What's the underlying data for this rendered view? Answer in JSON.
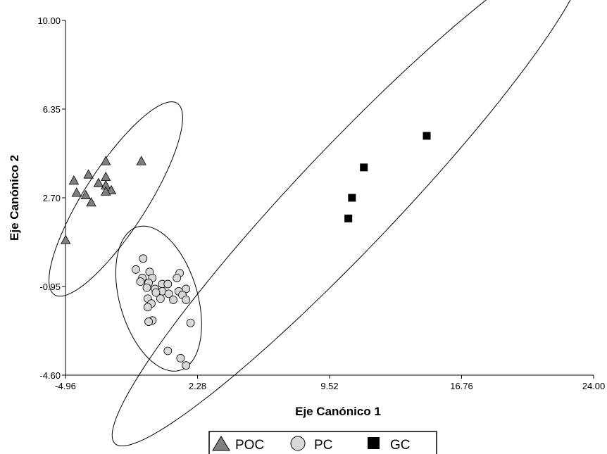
{
  "chart_data": {
    "type": "scatter",
    "title": "",
    "xlabel": "Eje Canónico 1",
    "ylabel": "Eje Canónico 2",
    "xlim": [
      -4.96,
      24.0
    ],
    "ylim": [
      -4.6,
      10.0
    ],
    "x_ticks": [
      "-4.96",
      "2.28",
      "9.52",
      "16.76",
      "24.00"
    ],
    "y_ticks": [
      "-4.60",
      "-0.95",
      "2.70",
      "6.35",
      "10.00"
    ],
    "grid": false,
    "legend_position": "bottom",
    "series": [
      {
        "name": "POC",
        "marker": "triangle",
        "color": "#808080",
        "points": [
          [
            -0.8,
            4.2
          ],
          [
            -2.75,
            4.2
          ],
          [
            -2.75,
            3.55
          ],
          [
            -3.7,
            3.65
          ],
          [
            -4.5,
            3.4
          ],
          [
            -3.15,
            3.3
          ],
          [
            -2.75,
            3.2
          ],
          [
            -2.45,
            3.0
          ],
          [
            -2.75,
            2.95
          ],
          [
            -4.35,
            2.9
          ],
          [
            -3.85,
            2.8
          ],
          [
            -3.55,
            2.5
          ],
          [
            -4.95,
            0.95
          ]
        ]
      },
      {
        "name": "PC",
        "marker": "circle",
        "color": "#d9d9d9",
        "points": [
          [
            -0.7,
            0.2
          ],
          [
            -1.1,
            -0.25
          ],
          [
            -0.35,
            -0.35
          ],
          [
            1.3,
            -0.4
          ],
          [
            -0.75,
            -0.6
          ],
          [
            -0.2,
            -0.6
          ],
          [
            1.15,
            -0.6
          ],
          [
            -0.85,
            -0.75
          ],
          [
            -0.4,
            -0.8
          ],
          [
            0.35,
            -0.85
          ],
          [
            0.65,
            -0.85
          ],
          [
            -0.5,
            -1.0
          ],
          [
            -0.05,
            -1.05
          ],
          [
            1.65,
            -1.05
          ],
          [
            0.35,
            -1.15
          ],
          [
            1.25,
            -1.15
          ],
          [
            0.0,
            -1.2
          ],
          [
            0.7,
            -1.25
          ],
          [
            1.45,
            -1.3
          ],
          [
            -0.45,
            -1.45
          ],
          [
            0.25,
            -1.45
          ],
          [
            0.95,
            -1.5
          ],
          [
            1.65,
            -1.5
          ],
          [
            -0.25,
            -1.65
          ],
          [
            -0.45,
            -1.8
          ],
          [
            -0.2,
            -2.35
          ],
          [
            -0.4,
            -2.4
          ],
          [
            1.9,
            -2.45
          ],
          [
            0.65,
            -3.6
          ],
          [
            1.35,
            -3.9
          ],
          [
            1.65,
            -4.2
          ]
        ]
      },
      {
        "name": "GC",
        "marker": "square",
        "color": "#000000",
        "points": [
          [
            14.85,
            5.25
          ],
          [
            11.4,
            3.95
          ],
          [
            10.75,
            2.7
          ],
          [
            10.55,
            1.85
          ]
        ]
      }
    ],
    "ellipses": [
      {
        "series": "POC",
        "center": [
          -2.2,
          2.65
        ],
        "semi_axes": [
          5.2,
          1.55
        ],
        "angle_deg": 48
      },
      {
        "series": "PC",
        "center": [
          0.15,
          -1.45
        ],
        "semi_axes": [
          3.2,
          2.05
        ],
        "angle_deg": -62
      },
      {
        "series": "GC",
        "center": [
          10.6,
          2.75
        ],
        "semi_axes": [
          16.4,
          2.35
        ],
        "angle_deg": 38
      }
    ]
  },
  "legend": {
    "items": [
      {
        "label": "POC",
        "marker": "triangle"
      },
      {
        "label": "PC",
        "marker": "circle"
      },
      {
        "label": "GC",
        "marker": "square"
      }
    ]
  }
}
